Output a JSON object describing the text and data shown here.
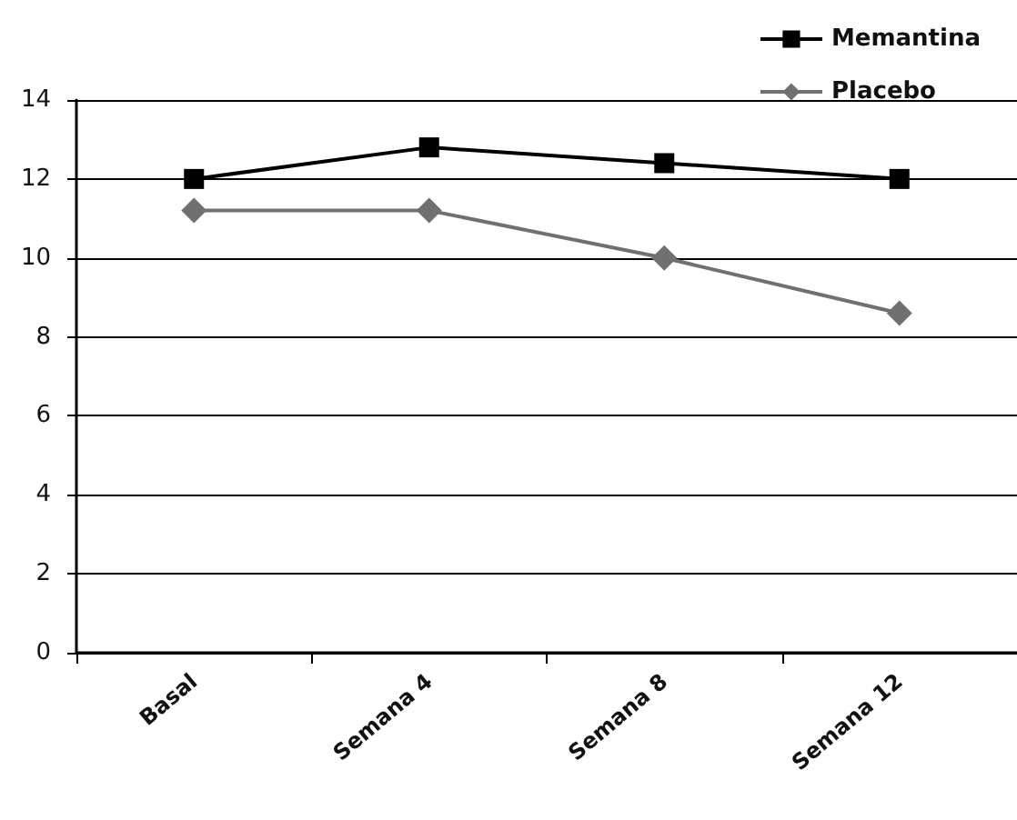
{
  "chart_data": {
    "type": "line",
    "categories": [
      "Basal",
      "Semana 4",
      "Semana 8",
      "Semana 12"
    ],
    "series": [
      {
        "name": "Memantina",
        "color": "#000000",
        "marker": "square",
        "values": [
          12,
          12.8,
          12.4,
          12
        ]
      },
      {
        "name": "Placebo",
        "color": "#707070",
        "marker": "diamond",
        "values": [
          11.2,
          11.2,
          10,
          8.6
        ]
      }
    ],
    "ylim": [
      0,
      14
    ],
    "yticks": [
      0,
      2,
      4,
      6,
      8,
      10,
      12,
      14
    ],
    "grid": "y",
    "legend": "top right"
  }
}
